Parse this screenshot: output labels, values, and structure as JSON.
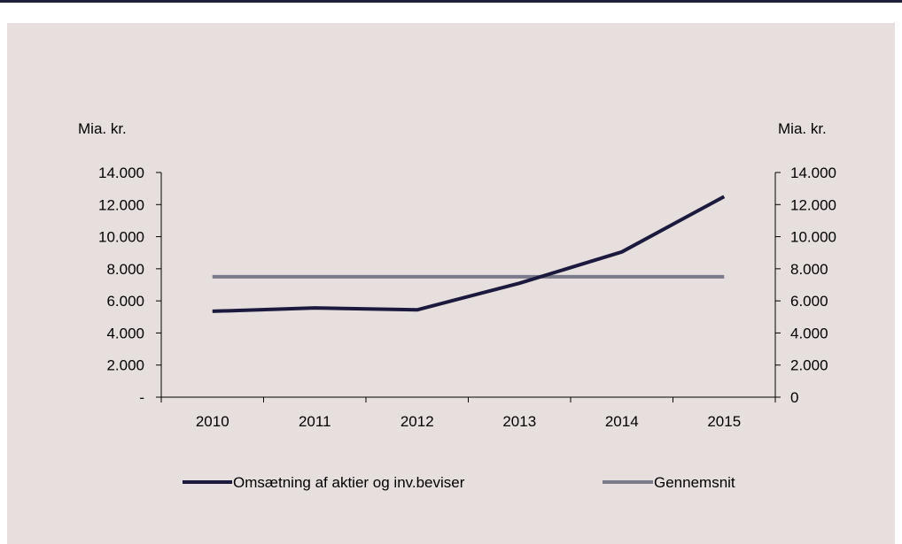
{
  "chart_data": {
    "type": "line",
    "categories": [
      "2010",
      "2011",
      "2012",
      "2013",
      "2014",
      "2015"
    ],
    "series": [
      {
        "name": "Omsætning af aktier og inv.beviser",
        "values": [
          5350,
          5560,
          5440,
          7100,
          9050,
          12500
        ],
        "color": "#1b1a3e"
      },
      {
        "name": "Gennemsnit",
        "values": [
          7500,
          7500,
          7500,
          7500,
          7500,
          7500
        ],
        "color": "#7a7a8c"
      }
    ],
    "left_axis": {
      "unit": "Mia. kr.",
      "ticks": [
        "-",
        "2.000",
        "4.000",
        "6.000",
        "8.000",
        "10.000",
        "12.000",
        "14.000"
      ]
    },
    "right_axis": {
      "unit": "Mia. kr.",
      "ticks": [
        "0",
        "2.000",
        "4.000",
        "6.000",
        "8.000",
        "10.000",
        "12.000",
        "14.000"
      ]
    },
    "ylim": [
      0,
      14000
    ],
    "grid": false,
    "legend_position": "bottom"
  }
}
